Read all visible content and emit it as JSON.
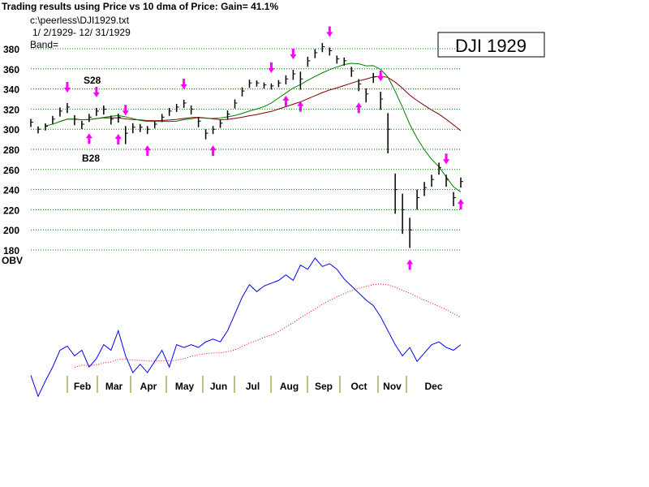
{
  "chart_data": {
    "type": "bar",
    "title": "Trading results using Price vs  10 dma of Price: Gain= 41.1%",
    "file_label": "c:\\peerless\\DJI1929.txt",
    "date_range": " 1/ 2/1929- 12/ 31/1929",
    "band_label": "Band=",
    "box_label": "DJI 1929",
    "obv_label": "OBV",
    "ylim": [
      180,
      380
    ],
    "yticks": [
      "380",
      "360",
      "340",
      "320",
      "300",
      "280",
      "260",
      "240",
      "220",
      "200",
      "180"
    ],
    "months": [
      "Feb",
      "Mar",
      "Apr",
      "May",
      "Jun",
      "Jul",
      "Aug",
      "Sep",
      "Oct",
      "Nov",
      "Dec"
    ],
    "grid": true,
    "annotations": [
      {
        "text": "S28"
      },
      {
        "text": "B28"
      }
    ],
    "colors": {
      "bars": "#000000",
      "ma_short": "#008000",
      "ma_long": "#800000",
      "obv": "#0000ff",
      "obv_ma": "#ff0000",
      "signals": "#ff00ff",
      "grid": "#008000",
      "month_ticks": "#808000"
    },
    "price_close": [
      307,
      300,
      303,
      310,
      318,
      322,
      310,
      305,
      312,
      318,
      320,
      310,
      312,
      296,
      302,
      302,
      300,
      305,
      312,
      318,
      322,
      326,
      320,
      308,
      296,
      300,
      306,
      315,
      326,
      338,
      346,
      346,
      344,
      343,
      346,
      350,
      355,
      350,
      368,
      376,
      382,
      378,
      370,
      368,
      358,
      345,
      335,
      352,
      330,
      300,
      240,
      220,
      200,
      232,
      242,
      250,
      262,
      250,
      232,
      248
    ],
    "price_range": [
      8,
      7,
      7,
      8,
      9,
      10,
      10,
      8,
      8,
      8,
      9,
      9,
      9,
      18,
      10,
      8,
      8,
      7,
      8,
      8,
      8,
      8,
      9,
      10,
      10,
      8,
      8,
      9,
      9,
      9,
      8,
      6,
      6,
      6,
      7,
      9,
      10,
      18,
      10,
      9,
      9,
      8,
      8,
      8,
      10,
      12,
      14,
      10,
      18,
      40,
      40,
      40,
      30,
      20,
      14,
      12,
      12,
      12,
      14,
      10
    ],
    "ma_short_period": 10,
    "ma_long_period": 21,
    "obv": [
      16,
      1,
      12,
      22,
      34,
      37,
      30,
      34,
      22,
      28,
      38,
      34,
      48,
      30,
      18,
      24,
      18,
      26,
      34,
      22,
      38,
      36,
      38,
      36,
      40,
      42,
      40,
      48,
      60,
      72,
      81,
      76,
      80,
      82,
      84,
      88,
      84,
      95,
      92,
      100,
      94,
      96,
      92,
      85,
      80,
      75,
      70,
      66,
      58,
      48,
      38,
      30,
      36,
      26,
      32,
      38,
      40,
      36,
      34,
      38
    ],
    "obv_ma_period": 21,
    "sell_signals": [
      5,
      9,
      13,
      21,
      33,
      36,
      41,
      48,
      57
    ],
    "buy_signals": [
      8,
      12,
      16,
      25,
      35,
      37,
      45,
      52,
      59
    ]
  }
}
